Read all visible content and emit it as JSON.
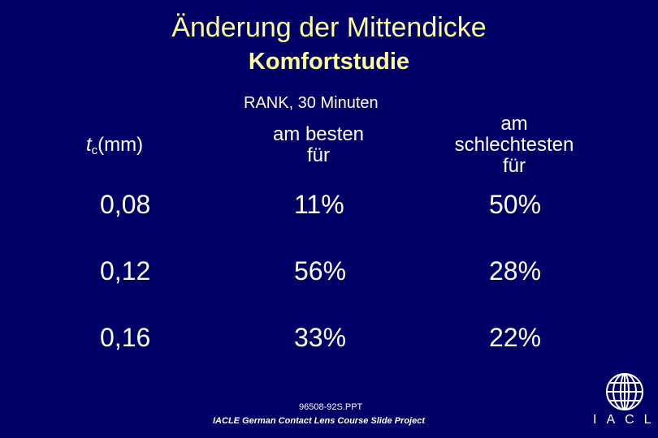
{
  "slide": {
    "title": "Änderung der Mittendicke",
    "subtitle": "Komfortstudie",
    "subhead": "RANK, 30 Minuten"
  },
  "table": {
    "headers": {
      "tc_symbol": "t",
      "tc_subscript": "c",
      "tc_unit": "(mm)",
      "best_line1": "am besten",
      "best_line2": "für",
      "worst_line1": "am",
      "worst_line2": "schlechtesten",
      "worst_line3": "für"
    },
    "rows": [
      {
        "tc": "0,08",
        "best": "11%",
        "worst": "50%"
      },
      {
        "tc": "0,12",
        "best": "56%",
        "worst": "28%"
      },
      {
        "tc": "0,16",
        "best": "33%",
        "worst": "22%"
      }
    ]
  },
  "footer": {
    "code": "96508-92S.PPT",
    "project": "IACLE German Contact Lens Course Slide Project"
  },
  "logo": {
    "text": "IACLE",
    "icon": "globe-icon"
  },
  "colors": {
    "background": "#000066",
    "title": "#ffff99",
    "text": "#ffffff"
  }
}
